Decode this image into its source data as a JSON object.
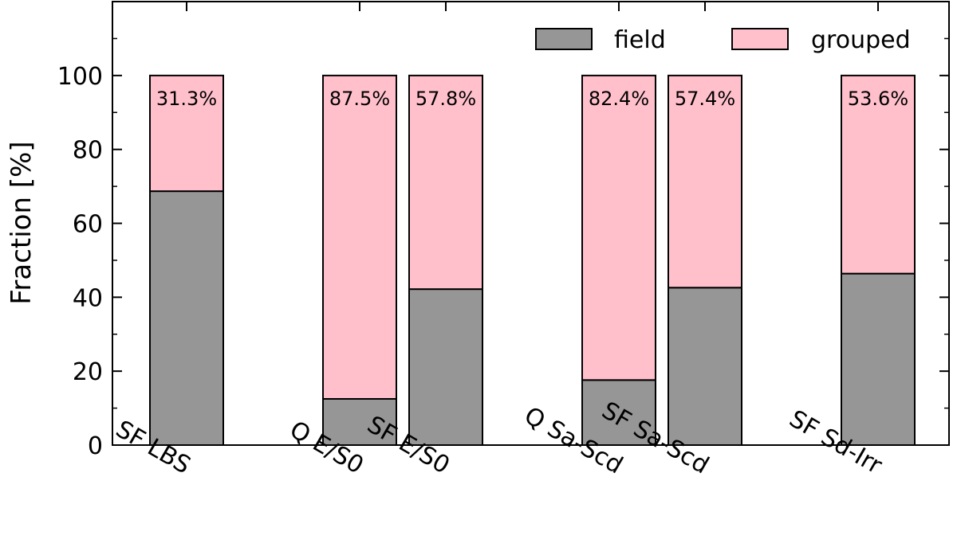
{
  "chart_data": {
    "type": "bar",
    "stacked": true,
    "ylabel": "Fraction [%]",
    "xlabel": "",
    "ylim": [
      0,
      120
    ],
    "yticks": [
      "0",
      "20",
      "40",
      "60",
      "80",
      "100"
    ],
    "categories": [
      "SF LBS",
      "Q E/S0",
      "SF E/S0",
      "Q Sa-Scd",
      "SF Sa-Scd",
      "SF Sd-Irr"
    ],
    "series": [
      {
        "name": "field",
        "color": "#969696",
        "values": [
          68.7,
          12.5,
          42.2,
          17.6,
          42.6,
          46.4
        ]
      },
      {
        "name": "grouped",
        "color": "#ffc0cb",
        "values": [
          31.3,
          87.5,
          57.8,
          82.4,
          57.4,
          53.6
        ]
      }
    ],
    "bar_labels": [
      "31.3%",
      "87.5%",
      "57.8%",
      "82.4%",
      "57.4%",
      "53.6%"
    ],
    "legend": {
      "position": "top-right",
      "entries": [
        "field",
        "grouped"
      ]
    },
    "grid": false
  }
}
